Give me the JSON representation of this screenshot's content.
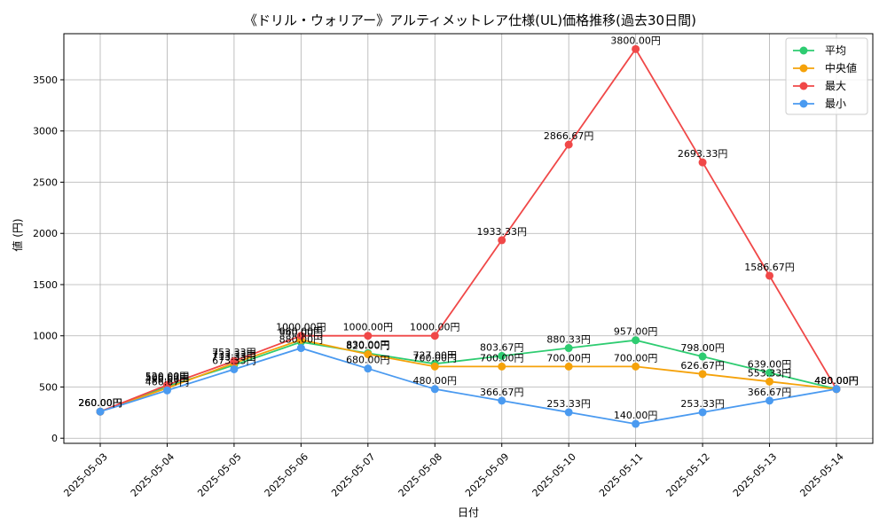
{
  "chart_data": {
    "type": "line",
    "title": "《ドリル・ウォリアー》アルティメットレア仕様(UL)価格推移(過去30日間)",
    "xlabel": "日付",
    "ylabel": "値 (円)",
    "ylim": [
      -50,
      3950
    ],
    "yticks": [
      0,
      500,
      1000,
      1500,
      2000,
      2500,
      3000,
      3500
    ],
    "grid": true,
    "legend_position": "top-right",
    "value_suffix": "円",
    "categories": [
      "2025-05-03",
      "2025-05-04",
      "2025-05-05",
      "2025-05-06",
      "2025-05-07",
      "2025-05-08",
      "2025-05-09",
      "2025-05-10",
      "2025-05-11",
      "2025-05-12",
      "2025-05-13",
      "2025-05-14"
    ],
    "series": [
      {
        "name": "平均",
        "color": "#2ecc71",
        "values": [
          260.0,
          506.67,
          713.33,
          940.0,
          830.0,
          727.0,
          803.67,
          880.33,
          957.0,
          798.0,
          639.0,
          480.0
        ]
      },
      {
        "name": "中央値",
        "color": "#f5a20a",
        "values": [
          260.0,
          490.0,
          733.33,
          960.0,
          820.0,
          700.0,
          700.0,
          700.0,
          700.0,
          626.67,
          553.33,
          480.0
        ]
      },
      {
        "name": "最大",
        "color": "#f04848",
        "values": [
          260.0,
          520.0,
          753.33,
          1000.0,
          1000.0,
          1000.0,
          1933.33,
          2866.67,
          3800.0,
          2693.33,
          1586.67,
          480.0
        ]
      },
      {
        "name": "最小",
        "color": "#4a9af0",
        "values": [
          260.0,
          466.67,
          673.33,
          880.0,
          680.0,
          480.0,
          366.67,
          253.33,
          140.0,
          253.33,
          366.67,
          480.0
        ]
      }
    ]
  }
}
